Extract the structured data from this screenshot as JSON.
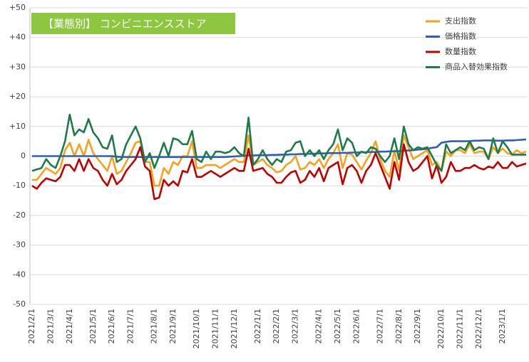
{
  "chart_data": {
    "type": "line",
    "title": "【業態別】 コンビニエンスストア",
    "categories": [
      "2021/2/1",
      null,
      null,
      null,
      "2021/3/1",
      null,
      null,
      null,
      "2021/4/1",
      null,
      null,
      null,
      null,
      "2021/5/1",
      null,
      null,
      null,
      "2021/6/1",
      null,
      null,
      null,
      "2021/7/1",
      null,
      null,
      null,
      null,
      "2021/8/1",
      null,
      null,
      null,
      "2021/9/1",
      null,
      null,
      null,
      null,
      "2021/10/1",
      null,
      null,
      null,
      "2021/11/1",
      null,
      null,
      null,
      "2021/12/1",
      null,
      null,
      null,
      null,
      "2022/1/1",
      null,
      null,
      null,
      "2022/2/1",
      null,
      null,
      null,
      "2022/3/1",
      null,
      null,
      null,
      null,
      "2022/4/1",
      null,
      null,
      null,
      "2022/5/1",
      null,
      null,
      null,
      "2022/6/1",
      null,
      null,
      null,
      null,
      "2022/7/1",
      null,
      null,
      null,
      "2022/8/1",
      null,
      null,
      null,
      "2022/9/1",
      null,
      null,
      null,
      null,
      "2022/10/1",
      null,
      null,
      null,
      "2022/11/1",
      null,
      null,
      null,
      "2022/12/1",
      null,
      null,
      null,
      null,
      "2023/1/1",
      null,
      null,
      null,
      null,
      null
    ],
    "series": [
      {
        "name": "支出指数",
        "color": "#f5a11c",
        "values": [
          -8,
          -8,
          -6,
          -4,
          -5,
          -6,
          -4,
          2,
          4.5,
          0,
          4,
          0,
          5.5,
          1,
          -1,
          -3,
          -5,
          0,
          -6,
          -5,
          -2,
          1,
          4.5,
          5,
          -2,
          -2,
          -10,
          -10,
          -4,
          -6,
          -2,
          -3,
          0,
          0,
          5,
          -4,
          -4,
          -3,
          -3,
          -3,
          -4,
          -3,
          -2,
          -1,
          -2,
          -2,
          7,
          -3,
          -2,
          -1,
          -3,
          -4,
          -5.5,
          -5,
          -3,
          -2,
          0,
          -4.5,
          -4,
          -2,
          -3,
          -1,
          -4,
          -1,
          1,
          4,
          -4,
          1,
          0.5,
          -2,
          -4.5,
          -1.5,
          1,
          5,
          -1,
          -5,
          -7,
          2,
          -5,
          7,
          3,
          -1,
          0,
          1,
          2,
          -3,
          -2,
          -5,
          1.5,
          0,
          2,
          2,
          1,
          4,
          1,
          1.5,
          1.5,
          -1,
          3,
          1,
          2.5,
          1,
          0.5,
          2,
          1,
          1.5
        ]
      },
      {
        "name": "価格指数",
        "color": "#2f5fb3",
        "values": [
          0,
          0,
          0,
          0,
          0,
          0,
          0,
          0,
          0,
          0,
          0,
          0,
          0,
          0,
          0,
          0,
          0,
          0,
          -0.2,
          -0.3,
          -0.3,
          -0.3,
          -0.3,
          -0.3,
          -0.3,
          -0.3,
          -0.3,
          -0.3,
          -0.3,
          -0.3,
          -0.3,
          -0.3,
          -0.3,
          -0.3,
          -0.3,
          -0.3,
          -0.3,
          -0.3,
          -0.3,
          -0.3,
          -0.3,
          -0.3,
          -0.2,
          -0.1,
          0,
          0.1,
          0.2,
          0.2,
          0.3,
          0.3,
          0.3,
          0.4,
          0.4,
          0.5,
          0.5,
          0.6,
          0.6,
          0.7,
          0.7,
          0.8,
          0.8,
          0.9,
          0.9,
          1,
          1,
          1,
          1.1,
          1.1,
          1.2,
          1.2,
          1.3,
          1.3,
          1.4,
          1.4,
          1.5,
          1.5,
          1.6,
          1.6,
          1.7,
          1.8,
          1.9,
          2,
          2.2,
          2.3,
          2.5,
          2.8,
          3,
          4.5,
          4.8,
          5,
          5,
          5,
          5,
          5,
          5.2,
          5.2,
          5.3,
          5.3,
          5.3,
          5.2,
          5.2,
          5.3,
          5.3,
          5.4,
          5.5,
          5.6
        ]
      },
      {
        "name": "数量指数",
        "color": "#c00000",
        "values": [
          -10,
          -11,
          -9,
          -7.5,
          -8,
          -8.5,
          -7,
          -3,
          -3,
          -5,
          -1,
          -5,
          -1,
          -4,
          -5,
          -8,
          -10,
          -6,
          -9.5,
          -8,
          -5,
          -3,
          -1,
          3,
          -3.5,
          -5,
          -14.5,
          -14,
          -8,
          -10,
          -8.5,
          -10,
          -5,
          -5.5,
          -1,
          -7,
          -7,
          -6,
          -5,
          -6,
          -7,
          -6,
          -5,
          -4,
          -5,
          -5,
          2.5,
          -5,
          -4.5,
          -4,
          -6,
          -7,
          -9,
          -9,
          -7,
          -5.5,
          -5,
          -9,
          -8,
          -5,
          -7,
          -4,
          -8.5,
          -4,
          -3,
          -2,
          -9.5,
          -4,
          -3,
          -5,
          -9,
          -5,
          -3,
          1,
          -3,
          -7,
          -11,
          -2,
          -8,
          4,
          -2,
          -5,
          -4,
          -2,
          0,
          -7.5,
          -3,
          -9,
          -7,
          -2,
          -5,
          -5,
          -4,
          -4,
          -3,
          -4,
          -4.5,
          -3.5,
          -4,
          -2,
          -4,
          -4,
          -2,
          -3.5,
          -3,
          -2.5
        ]
      },
      {
        "name": "商品入替効果指数",
        "color": "#1e7a4a",
        "values": [
          -5,
          -4.5,
          -4,
          -1,
          -3,
          -4,
          0,
          5,
          14,
          7,
          9,
          8,
          12.5,
          8,
          6,
          3,
          2.5,
          7,
          -2,
          -1,
          4,
          7,
          10,
          6,
          -2,
          1,
          -4,
          0,
          4.5,
          0,
          6,
          5.5,
          4,
          4,
          8.5,
          -1,
          -2,
          1.5,
          -1,
          1.5,
          1.5,
          1,
          1.5,
          3,
          1,
          0,
          13,
          -3,
          -1,
          2,
          -1,
          -3,
          -1,
          -2,
          1.5,
          2,
          4.5,
          5,
          0,
          2,
          0,
          2,
          -1,
          2,
          4,
          9,
          2,
          6,
          4.5,
          0,
          1.5,
          1,
          3,
          2.5,
          0,
          -2,
          0,
          6,
          -1,
          10,
          4,
          2,
          3,
          2.5,
          3,
          0,
          -3,
          -5,
          4,
          1,
          2,
          3,
          2,
          5,
          2,
          3,
          2.5,
          -1,
          6,
          1,
          5,
          3,
          0.5,
          0.5,
          0.5,
          0.5
        ]
      }
    ],
    "ylim": [
      -50,
      50
    ],
    "yticks": [
      {
        "value": 50,
        "label": "+50"
      },
      {
        "value": 40,
        "label": "+40"
      },
      {
        "value": 30,
        "label": "+30"
      },
      {
        "value": 20,
        "label": "+20"
      },
      {
        "value": 10,
        "label": "+10"
      },
      0,
      -10,
      -20,
      -30,
      -40,
      -50
    ],
    "grid": true,
    "legend": "top-right"
  }
}
